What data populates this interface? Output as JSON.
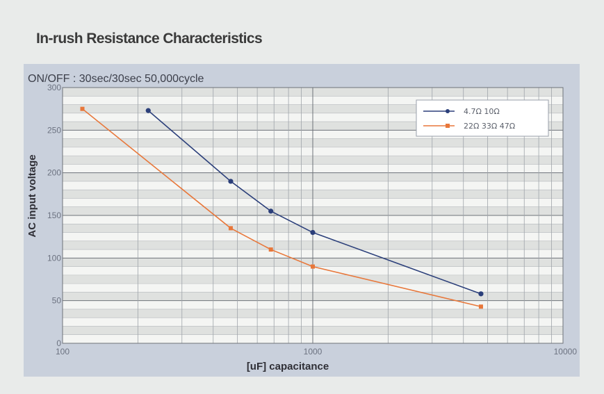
{
  "page": {
    "heading": "In-rush Resistance Characteristics"
  },
  "chart_data": {
    "type": "line",
    "subtitle": "ON/OFF : 30sec/30sec  50,000cycle",
    "xlabel": "[uF]  capacitance",
    "ylabel": "AC input voltage",
    "xscale": "log",
    "xlim": [
      100,
      10000
    ],
    "ylim": [
      0,
      300
    ],
    "x_ticks": [
      100,
      1000,
      10000
    ],
    "x_tick_labels": [
      "100",
      "1000",
      "10000"
    ],
    "y_ticks": [
      0,
      50,
      100,
      150,
      200,
      250,
      300
    ],
    "y_tick_labels": [
      "0",
      "50",
      "100",
      "150",
      "200",
      "250",
      "300"
    ],
    "grid": true,
    "legend_position": "top-right",
    "series": [
      {
        "name": "4.7Ω 10Ω",
        "color": "#2b3f7a",
        "x": [
          220,
          470,
          680,
          1000,
          4700
        ],
        "y": [
          273,
          190,
          155,
          130,
          58
        ]
      },
      {
        "name": "22Ω 33Ω 47Ω",
        "color": "#e8773a",
        "x": [
          120,
          470,
          680,
          1000,
          4700
        ],
        "y": [
          275,
          135,
          110,
          90,
          43
        ]
      }
    ]
  }
}
